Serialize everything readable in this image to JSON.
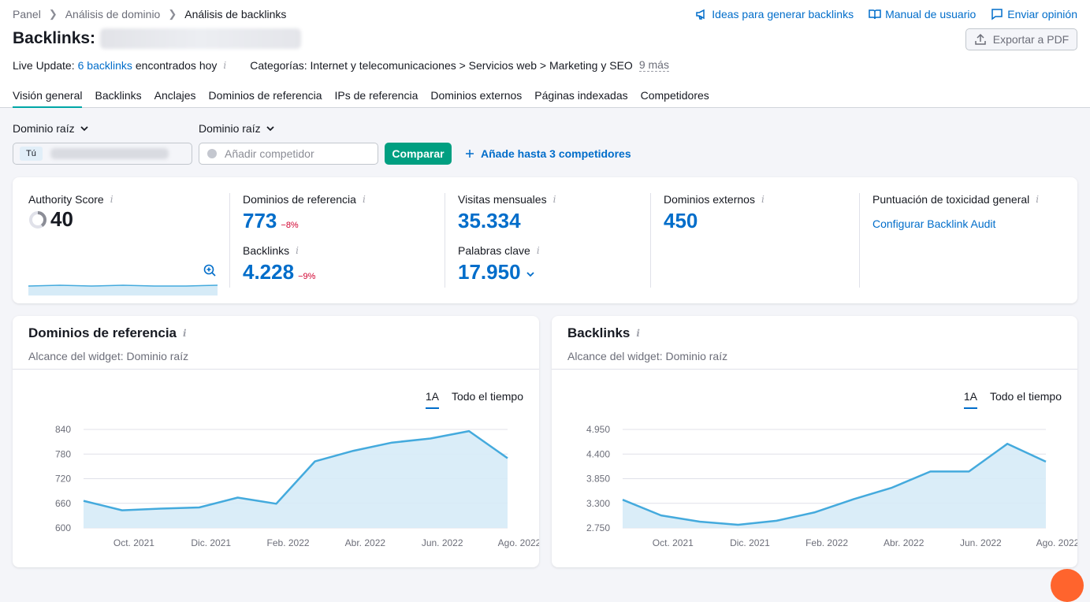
{
  "breadcrumb": [
    "Panel",
    "Análisis de dominio",
    "Análisis de backlinks"
  ],
  "top_actions": [
    {
      "label": "Ideas para generar backlinks",
      "icon": "megaphone-icon"
    },
    {
      "label": "Manual de usuario",
      "icon": "book-icon"
    },
    {
      "label": "Enviar opinión",
      "icon": "chat-icon"
    }
  ],
  "title": "Backlinks:",
  "export_label": "Exportar a PDF",
  "live_update": {
    "prefix": "Live Update:",
    "link": "6 backlinks",
    "suffix": "encontrados hoy",
    "categories": "Categorías: Internet y telecomunicaciones > Servicios web > Marketing y SEO",
    "more": "9 más"
  },
  "tabs": [
    "Visión general",
    "Backlinks",
    "Anclajes",
    "Dominios de referencia",
    "IPs de referencia",
    "Dominios externos",
    "Páginas indexadas",
    "Competidores"
  ],
  "scope": {
    "left_label": "Dominio raíz",
    "right_label": "Dominio raíz",
    "you_badge": "Tú",
    "competitor_placeholder": "Añadir competidor",
    "compare_label": "Comparar",
    "add_competitors": "Añade hasta 3 competidores"
  },
  "stats": {
    "authority": {
      "label": "Authority Score",
      "value": "40"
    },
    "ref_domains": {
      "label": "Dominios de referencia",
      "value": "773",
      "delta": "−8%"
    },
    "backlinks": {
      "label": "Backlinks",
      "value": "4.228",
      "delta": "−9%"
    },
    "visits": {
      "label": "Visitas mensuales",
      "value": "35.334"
    },
    "keywords": {
      "label": "Palabras clave",
      "value": "17.950"
    },
    "ext_domains": {
      "label": "Dominios externos",
      "value": "450"
    },
    "toxicity": {
      "label": "Puntuación de toxicidad general",
      "link": "Configurar Backlink Audit"
    }
  },
  "widgets": {
    "left": {
      "title": "Dominios de referencia",
      "subtitle": "Alcance del widget: Dominio raíz",
      "tab_active": "1A",
      "tab_other": "Todo el tiempo"
    },
    "right": {
      "title": "Backlinks",
      "subtitle": "Alcance del widget: Dominio raíz",
      "tab_active": "1A",
      "tab_other": "Todo el tiempo"
    }
  },
  "colors": {
    "accent": "#006dca",
    "line": "#44aadd",
    "fill": "#d6ebf7",
    "teal": "#009f81",
    "negative": "#d1002f"
  },
  "chart_data": [
    {
      "type": "area",
      "x_labels": [
        "Oct. 2021",
        "Dic. 2021",
        "Feb. 2022",
        "Abr. 2022",
        "Jun. 2022",
        "Ago. 2022"
      ],
      "y_ticks": [
        600,
        660,
        720,
        780,
        840
      ],
      "y_tick_labels": [
        "600",
        "660",
        "720",
        "780",
        "840"
      ],
      "ylim": [
        600,
        840
      ],
      "values": [
        666,
        643,
        647,
        650,
        674,
        659,
        762,
        788,
        808,
        818,
        836,
        770
      ]
    },
    {
      "type": "area",
      "x_labels": [
        "Oct. 2021",
        "Dic. 2021",
        "Feb. 2022",
        "Abr. 2022",
        "Jun. 2022",
        "Ago. 2022"
      ],
      "y_ticks": [
        2750,
        3300,
        3850,
        4400,
        4950
      ],
      "y_tick_labels": [
        "2.750",
        "3.300",
        "3.850",
        "4.400",
        "4.950"
      ],
      "ylim": [
        2750,
        4950
      ],
      "values": [
        3380,
        3030,
        2890,
        2820,
        2910,
        3100,
        3390,
        3650,
        4010,
        4010,
        4630,
        4230
      ]
    }
  ]
}
